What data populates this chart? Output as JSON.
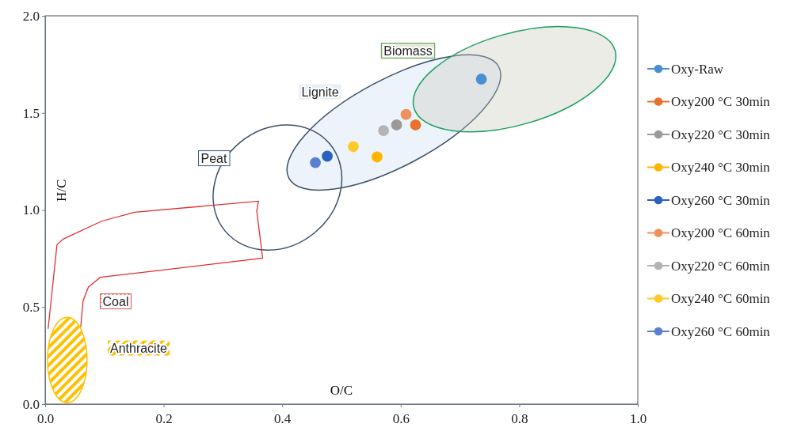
{
  "chart_data": {
    "type": "scatter",
    "xlabel": "O/C",
    "ylabel": "H/C",
    "xlim": [
      0,
      1
    ],
    "ylim": [
      0,
      2
    ],
    "xticks": [
      {
        "value": 0,
        "label": "0.0"
      },
      {
        "value": 0.2,
        "label": "0.2"
      },
      {
        "value": 0.4,
        "label": "0.4"
      },
      {
        "value": 0.6,
        "label": "0.6"
      },
      {
        "value": 0.8,
        "label": "0.8"
      },
      {
        "value": 1,
        "label": "1.0"
      }
    ],
    "yticks": [
      {
        "value": 0,
        "label": "0.0"
      },
      {
        "value": 0.5,
        "label": "0.5"
      },
      {
        "value": 1,
        "label": "1.0"
      },
      {
        "value": 1.5,
        "label": "1.5"
      },
      {
        "value": 2,
        "label": "2.0"
      }
    ],
    "marker": "circle",
    "legend": "right",
    "grid": false,
    "series": [
      {
        "name": "Oxy-Raw",
        "color": "#4a90d0",
        "x": [
          0.736
        ],
        "values": [
          1.674
        ]
      },
      {
        "name": "Oxy200 °C 30min",
        "color": "#e8722c",
        "x": [
          0.625
        ],
        "values": [
          1.438
        ]
      },
      {
        "name": "Oxy220 °C 30min",
        "color": "#9a9a9a",
        "x": [
          0.593
        ],
        "values": [
          1.438
        ]
      },
      {
        "name": "Oxy240 °C 30min",
        "color": "#ffb400",
        "x": [
          0.56
        ],
        "values": [
          1.273
        ]
      },
      {
        "name": "Oxy260 °C 30min",
        "color": "#2a62c0",
        "x": [
          0.476
        ],
        "values": [
          1.277
        ]
      },
      {
        "name": "Oxy200 °C 60min",
        "color": "#f0905a",
        "x": [
          0.609
        ],
        "values": [
          1.492
        ]
      },
      {
        "name": "Oxy220 °C 60min",
        "color": "#b4b4b4",
        "x": [
          0.571
        ],
        "values": [
          1.409
        ]
      },
      {
        "name": "Oxy240 °C 60min",
        "color": "#ffc928",
        "x": [
          0.52
        ],
        "values": [
          1.326
        ]
      },
      {
        "name": "Oxy260 °C 60min",
        "color": "#5a80d0",
        "x": [
          0.456
        ],
        "values": [
          1.244
        ]
      }
    ],
    "annotations": [
      "Biomass",
      "Lignite",
      "Peat",
      "Coal",
      "Anthracite"
    ]
  }
}
